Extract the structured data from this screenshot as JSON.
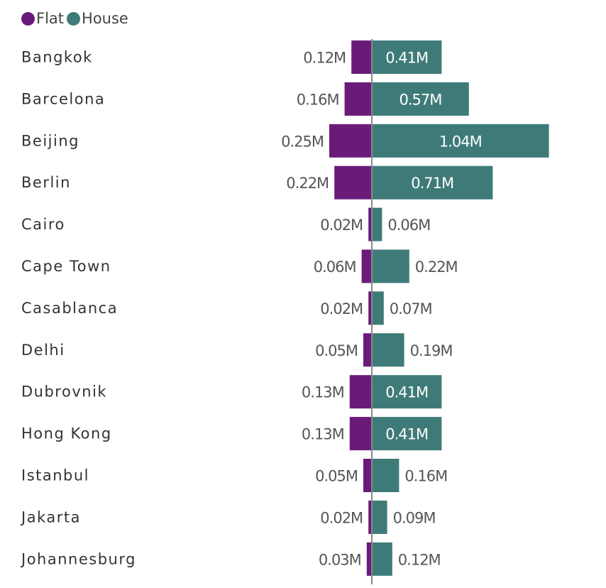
{
  "chart_data": {
    "type": "bar",
    "orientation": "horizontal-diverging",
    "categories": [
      "Bangkok",
      "Barcelona",
      "Beijing",
      "Berlin",
      "Cairo",
      "Cape Town",
      "Casablanca",
      "Delhi",
      "Dubrovnik",
      "Hong Kong",
      "Istanbul",
      "Jakarta",
      "Johannesburg"
    ],
    "series": [
      {
        "name": "Flat",
        "color": "#6a1b7a",
        "values": [
          0.12,
          0.16,
          0.25,
          0.22,
          0.02,
          0.06,
          0.02,
          0.05,
          0.13,
          0.13,
          0.05,
          0.02,
          0.03
        ],
        "labels": [
          "0.12M",
          "0.16M",
          "0.25M",
          "0.22M",
          "0.02M",
          "0.06M",
          "0.02M",
          "0.05M",
          "0.13M",
          "0.13M",
          "0.05M",
          "0.02M",
          "0.03M"
        ]
      },
      {
        "name": "House",
        "color": "#3e7b78",
        "values": [
          0.41,
          0.57,
          1.04,
          0.71,
          0.06,
          0.22,
          0.07,
          0.19,
          0.41,
          0.41,
          0.16,
          0.09,
          0.12
        ],
        "labels": [
          "0.41M",
          "0.57M",
          "1.04M",
          "0.71M",
          "0.06M",
          "0.22M",
          "0.07M",
          "0.19M",
          "0.41M",
          "0.41M",
          "0.16M",
          "0.09M",
          "0.12M"
        ]
      }
    ],
    "legend": "top-left",
    "grid": false
  }
}
